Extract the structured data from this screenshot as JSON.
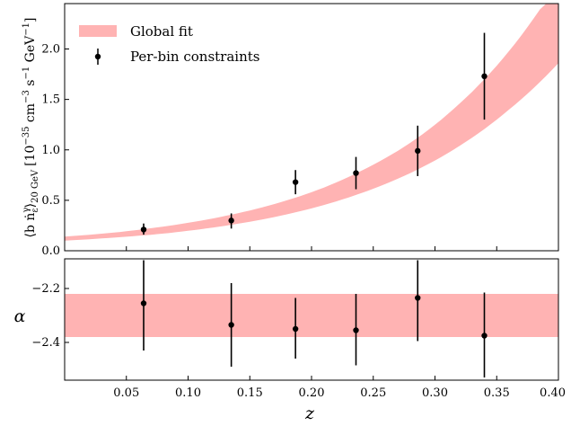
{
  "chart_data": [
    {
      "type": "scatter",
      "panel": "top",
      "xlabel": "",
      "ylabel": "⟨bṅ^γ_ε⟩_20 GeV [10^−35 cm^−3 s^−1 GeV^−1]",
      "ylabel_parts": {
        "main": "⟨b ṅ",
        "sup": "γ",
        "sub_eps": "ε",
        "close": "⟩",
        "sub": "20 GeV",
        "units": "[10",
        "exp1": "−35",
        "cm": " cm",
        "exp2": "−3",
        "s": " s",
        "exp3": "−1",
        "gev": " GeV",
        "exp4": "−1",
        "end": "]"
      },
      "xlim": [
        0.0,
        0.4
      ],
      "ylim": [
        0.0,
        2.45
      ],
      "yticks": [
        0.0,
        0.5,
        1.0,
        1.5,
        2.0
      ],
      "ytick_labels": [
        "0.0",
        "0.5",
        "1.0",
        "1.5",
        "2.0"
      ],
      "band": {
        "name": "Global fit",
        "color": "#ffb3b3",
        "x": [
          0.0,
          0.04,
          0.08,
          0.12,
          0.16,
          0.2,
          0.24,
          0.28,
          0.32,
          0.36,
          0.4
        ],
        "lower": [
          0.1,
          0.13,
          0.17,
          0.23,
          0.31,
          0.42,
          0.57,
          0.77,
          1.04,
          1.4,
          1.86
        ],
        "upper": [
          0.14,
          0.18,
          0.24,
          0.32,
          0.43,
          0.58,
          0.79,
          1.07,
          1.46,
          1.98,
          2.68
        ]
      },
      "series": [
        {
          "name": "Per-bin constraints",
          "color": "#000000",
          "x": [
            0.064,
            0.135,
            0.187,
            0.236,
            0.286,
            0.34
          ],
          "y": [
            0.21,
            0.3,
            0.68,
            0.77,
            0.99,
            1.73
          ],
          "y_lower": [
            0.16,
            0.22,
            0.56,
            0.61,
            0.74,
            1.3
          ],
          "y_upper": [
            0.27,
            0.37,
            0.8,
            0.93,
            1.24,
            2.16
          ]
        }
      ],
      "legend": "top-left"
    },
    {
      "type": "scatter",
      "panel": "bottom",
      "xlabel": "z",
      "ylabel": "α",
      "xlim": [
        0.0,
        0.4
      ],
      "ylim": [
        -2.54,
        -2.09
      ],
      "xticks": [
        0.05,
        0.1,
        0.15,
        0.2,
        0.25,
        0.3,
        0.35,
        0.4
      ],
      "xtick_labels": [
        "0.05",
        "0.10",
        "0.15",
        "0.20",
        "0.25",
        "0.30",
        "0.35",
        "0.40"
      ],
      "yticks": [
        -2.2,
        -2.4
      ],
      "ytick_labels": [
        "−2.2",
        "−2.4"
      ],
      "band": {
        "color": "#ffb3b3",
        "lower": -2.38,
        "upper": -2.22
      },
      "series": [
        {
          "color": "#000000",
          "x": [
            0.064,
            0.135,
            0.187,
            0.236,
            0.286,
            0.34
          ],
          "y": [
            -2.255,
            -2.335,
            -2.35,
            -2.355,
            -2.235,
            -2.375
          ],
          "y_lower": [
            -2.43,
            -2.49,
            -2.46,
            -2.485,
            -2.395,
            -2.53
          ],
          "y_upper": [
            -2.095,
            -2.18,
            -2.235,
            -2.22,
            -2.095,
            -2.215
          ]
        }
      ]
    }
  ]
}
